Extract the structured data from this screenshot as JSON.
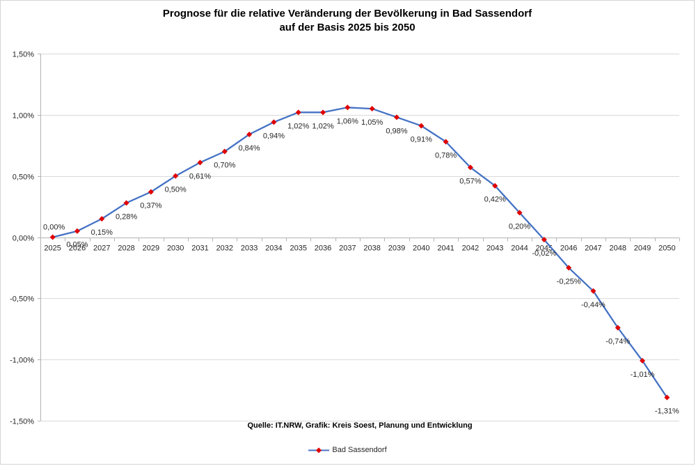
{
  "title": {
    "line1": "Prognose für die relative Veränderung der Bevölkerung in Bad Sassendorf",
    "line2": "auf der Basis 2025 bis 2050"
  },
  "source_note": "Quelle: IT.NRW, Grafik: Kreis Soest, Planung und Entwicklung",
  "legend": {
    "series_label": "Bad Sassendorf"
  },
  "colors": {
    "line": "#4472c4",
    "marker": "#e00000",
    "gridline": "#d9d9d9",
    "axis": "#b3b3b3",
    "label_text": "#262626",
    "title_text": "#000000"
  },
  "chart_data": {
    "type": "line",
    "title": "Prognose für die relative Veränderung der Bevölkerung in Bad Sassendorf auf der Basis 2025 bis 2050",
    "categories": [
      "2025",
      "2026",
      "2027",
      "2028",
      "2029",
      "2030",
      "2031",
      "2032",
      "2033",
      "2034",
      "2035",
      "2036",
      "2037",
      "2038",
      "2039",
      "2040",
      "2041",
      "2042",
      "2043",
      "2044",
      "2045",
      "2046",
      "2047",
      "2048",
      "2049",
      "2050"
    ],
    "series": [
      {
        "name": "Bad Sassendorf",
        "values": [
          0.0,
          0.05,
          0.15,
          0.28,
          0.37,
          0.5,
          0.61,
          0.7,
          0.84,
          0.94,
          1.02,
          1.02,
          1.06,
          1.05,
          0.98,
          0.91,
          0.78,
          0.57,
          0.42,
          0.2,
          -0.02,
          -0.25,
          -0.44,
          -0.74,
          -1.01,
          -1.31
        ],
        "labels": [
          "0,00%",
          "0,05%",
          "0,15%",
          "0,28%",
          "0,37%",
          "0,50%",
          "0,61%",
          "0,70%",
          "0,84%",
          "0,94%",
          "1,02%",
          "1,02%",
          "1,06%",
          "1,05%",
          "0,98%",
          "0,91%",
          "0,78%",
          "0,57%",
          "0,42%",
          "0,20%",
          "-0,02%",
          "-0,25%",
          "-0,44%",
          "-0,74%",
          "-1,01%",
          "-1,31%"
        ]
      }
    ],
    "xlabel": "",
    "ylabel": "",
    "ylim": [
      -1.5,
      1.5
    ],
    "y_axis": {
      "tick_labels": [
        "1,50%",
        "1,00%",
        "0,50%",
        "0,00%",
        "-0,50%",
        "-1,00%",
        "-1,50%"
      ],
      "tick_values": [
        1.5,
        1.0,
        0.5,
        0.0,
        -0.5,
        -1.0,
        -1.5
      ]
    },
    "grid": true,
    "legend_position": "bottom"
  }
}
